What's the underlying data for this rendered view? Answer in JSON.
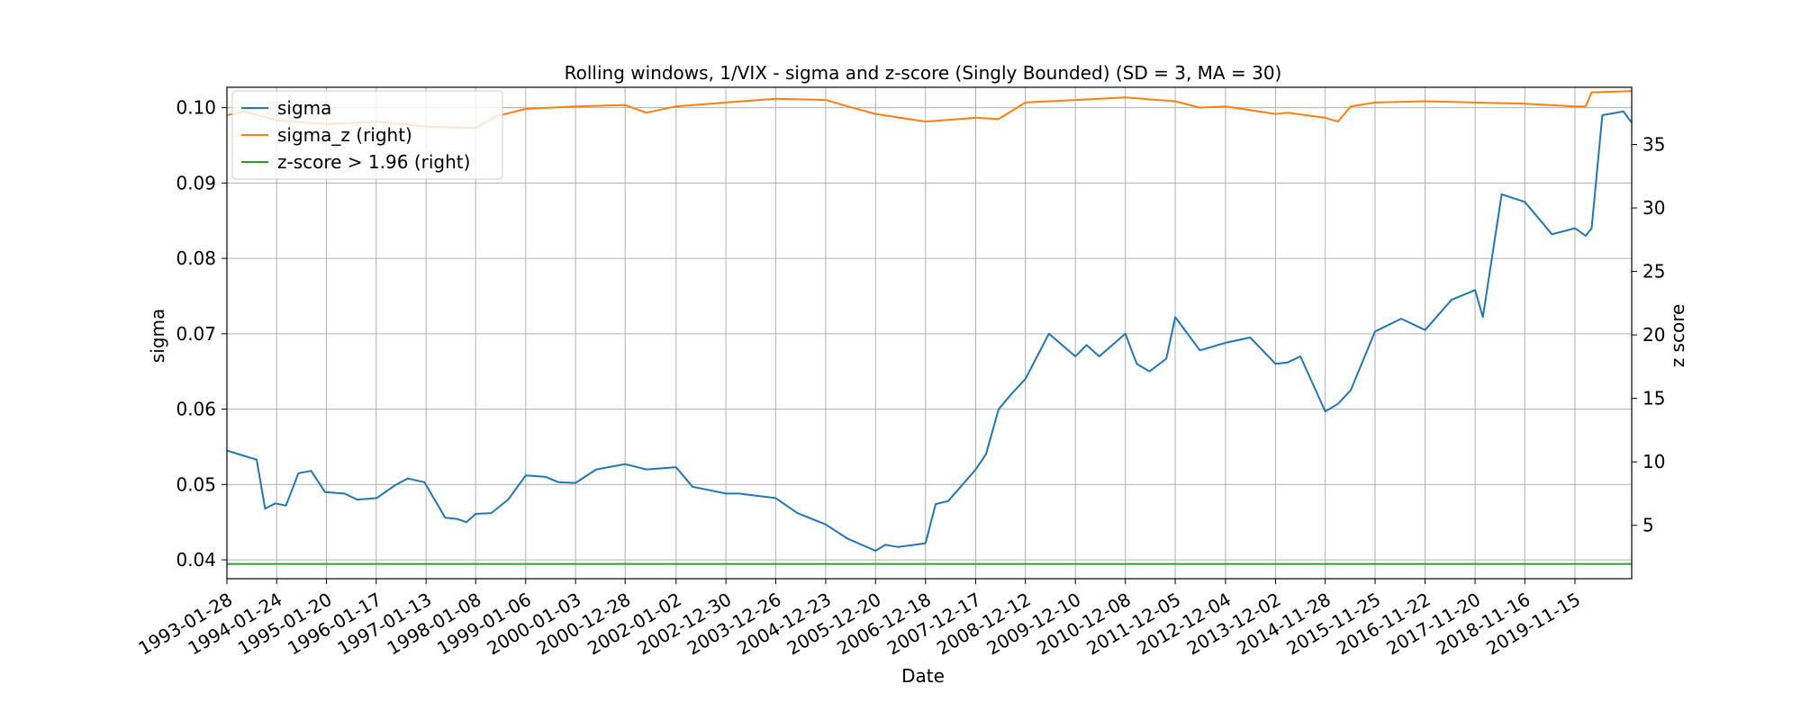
{
  "chart_data": {
    "type": "line",
    "title": "Rolling windows, 1/VIX - sigma and z-score (Singly Bounded) (SD = 3, MA = 30)",
    "xlabel": "Date",
    "ylabel": "sigma",
    "ylabel_right": "z score",
    "x_ticks": [
      "1993-01-28",
      "1994-01-24",
      "1995-01-20",
      "1996-01-17",
      "1997-01-13",
      "1998-01-08",
      "1999-01-06",
      "2000-01-03",
      "2000-12-28",
      "2002-01-02",
      "2002-12-30",
      "2003-12-26",
      "2004-12-23",
      "2005-12-20",
      "2006-12-18",
      "2007-12-17",
      "2008-12-12",
      "2009-12-10",
      "2010-12-08",
      "2011-12-05",
      "2012-12-04",
      "2013-12-02",
      "2014-11-28",
      "2015-11-25",
      "2016-11-22",
      "2017-11-20",
      "2018-11-16",
      "2019-11-15"
    ],
    "xlim": [
      "1993-01-28",
      "2020-12-31"
    ],
    "ylim_left": [
      0.0375,
      0.1027
    ],
    "ylim_right": [
      0.8,
      39.5
    ],
    "left_ticks": [
      0.04,
      0.05,
      0.06,
      0.07,
      0.08,
      0.09,
      0.1
    ],
    "left_tick_labels": [
      "0.04",
      "0.05",
      "0.06",
      "0.07",
      "0.08",
      "0.09",
      "0.10"
    ],
    "right_ticks": [
      5,
      10,
      15,
      20,
      25,
      30,
      35
    ],
    "right_tick_labels": [
      "5",
      "10",
      "15",
      "20",
      "25",
      "30",
      "35"
    ],
    "grid": true,
    "legend_position": "top-left",
    "series": [
      {
        "name": "sigma",
        "axis": "left",
        "color": "#1f77b4",
        "x": [
          "1993-01-28",
          "1993-06-01",
          "1993-09-01",
          "1993-11-01",
          "1994-01-15",
          "1994-04-01",
          "1994-07-01",
          "1994-10-01",
          "1995-01-10",
          "1995-06-01",
          "1995-09-01",
          "1996-01-20",
          "1996-06-01",
          "1996-09-01",
          "1997-01-01",
          "1997-06-01",
          "1997-09-01",
          "1997-11-01",
          "1998-01-08",
          "1998-05-01",
          "1998-09-01",
          "1999-01-06",
          "1999-06-01",
          "1999-09-01",
          "2000-01-03",
          "2000-06-01",
          "2000-12-28",
          "2001-06-01",
          "2002-01-02",
          "2002-05-01",
          "2002-12-30",
          "2003-04-01",
          "2003-12-26",
          "2004-06-01",
          "2004-12-23",
          "2005-06-01",
          "2005-12-20",
          "2006-03-01",
          "2006-06-01",
          "2006-12-18",
          "2007-03-01",
          "2007-06-01",
          "2007-12-17",
          "2008-03-01",
          "2008-06-01",
          "2008-09-01",
          "2008-12-12",
          "2009-06-01",
          "2009-12-10",
          "2010-03-01",
          "2010-06-01",
          "2010-12-08",
          "2011-03-01",
          "2011-06-01",
          "2011-10-01",
          "2011-12-05",
          "2012-06-01",
          "2012-12-04",
          "2013-06-01",
          "2013-12-02",
          "2014-03-01",
          "2014-06-01",
          "2014-11-28",
          "2015-03-01",
          "2015-06-01",
          "2015-11-25",
          "2016-06-01",
          "2016-11-22",
          "2017-06-01",
          "2017-11-20",
          "2018-01-15",
          "2018-06-01",
          "2018-11-16",
          "2019-06-01",
          "2019-11-15",
          "2020-02-01",
          "2020-03-15",
          "2020-06-01",
          "2020-11-01",
          "2020-12-31"
        ],
        "values": [
          0.0545,
          0.0538,
          0.0533,
          0.0468,
          0.0475,
          0.0472,
          0.0515,
          0.0518,
          0.049,
          0.0488,
          0.048,
          0.0482,
          0.0499,
          0.0508,
          0.0503,
          0.0456,
          0.0454,
          0.045,
          0.0461,
          0.0462,
          0.048,
          0.0512,
          0.051,
          0.0503,
          0.0502,
          0.052,
          0.0527,
          0.052,
          0.0523,
          0.0497,
          0.0488,
          0.0488,
          0.0482,
          0.0462,
          0.0447,
          0.0428,
          0.0412,
          0.042,
          0.0417,
          0.0422,
          0.0474,
          0.0478,
          0.052,
          0.054,
          0.06,
          0.062,
          0.064,
          0.07,
          0.067,
          0.0685,
          0.067,
          0.07,
          0.066,
          0.065,
          0.0667,
          0.0722,
          0.0678,
          0.0688,
          0.0695,
          0.066,
          0.0662,
          0.067,
          0.0597,
          0.0607,
          0.0625,
          0.0703,
          0.072,
          0.0705,
          0.0745,
          0.0758,
          0.0722,
          0.0885,
          0.0875,
          0.0832,
          0.084,
          0.083,
          0.084,
          0.099,
          0.0995,
          0.098
        ]
      },
      {
        "name": "sigma_z (right)",
        "axis": "right",
        "color": "#ff7f0e",
        "x": [
          "1993-01-28",
          "1993-06-01",
          "1994-01-24",
          "1995-01-20",
          "1996-01-17",
          "1997-01-13",
          "1998-01-08",
          "1998-06-01",
          "1999-01-06",
          "2000-01-03",
          "2000-12-28",
          "2001-06-01",
          "2002-01-02",
          "2002-12-30",
          "2003-12-26",
          "2004-12-23",
          "2005-06-01",
          "2005-12-20",
          "2006-12-18",
          "2007-12-17",
          "2008-06-01",
          "2008-12-12",
          "2009-12-10",
          "2010-12-08",
          "2011-12-05",
          "2012-06-01",
          "2012-12-04",
          "2013-12-02",
          "2014-03-01",
          "2014-11-28",
          "2015-03-01",
          "2015-06-01",
          "2015-11-25",
          "2016-11-22",
          "2017-11-20",
          "2018-11-16",
          "2019-11-15",
          "2020-02-01",
          "2020-03-15",
          "2020-12-31"
        ],
        "values": [
          37.3,
          37.6,
          36.9,
          36.6,
          36.8,
          36.4,
          36.3,
          37.2,
          37.8,
          38.0,
          38.1,
          37.5,
          38.0,
          38.3,
          38.6,
          38.5,
          38.0,
          37.4,
          36.8,
          37.1,
          37.0,
          38.3,
          38.5,
          38.7,
          38.4,
          37.9,
          38.0,
          37.4,
          37.5,
          37.1,
          36.8,
          38.0,
          38.3,
          38.4,
          38.3,
          38.2,
          38.0,
          38.0,
          39.1,
          39.2
        ]
      },
      {
        "name": "z-score > 1.96 (right)",
        "axis": "right",
        "color": "#2ca02c",
        "x": [
          "1993-01-28",
          "2020-12-31"
        ],
        "values": [
          1.96,
          1.96
        ]
      }
    ]
  }
}
